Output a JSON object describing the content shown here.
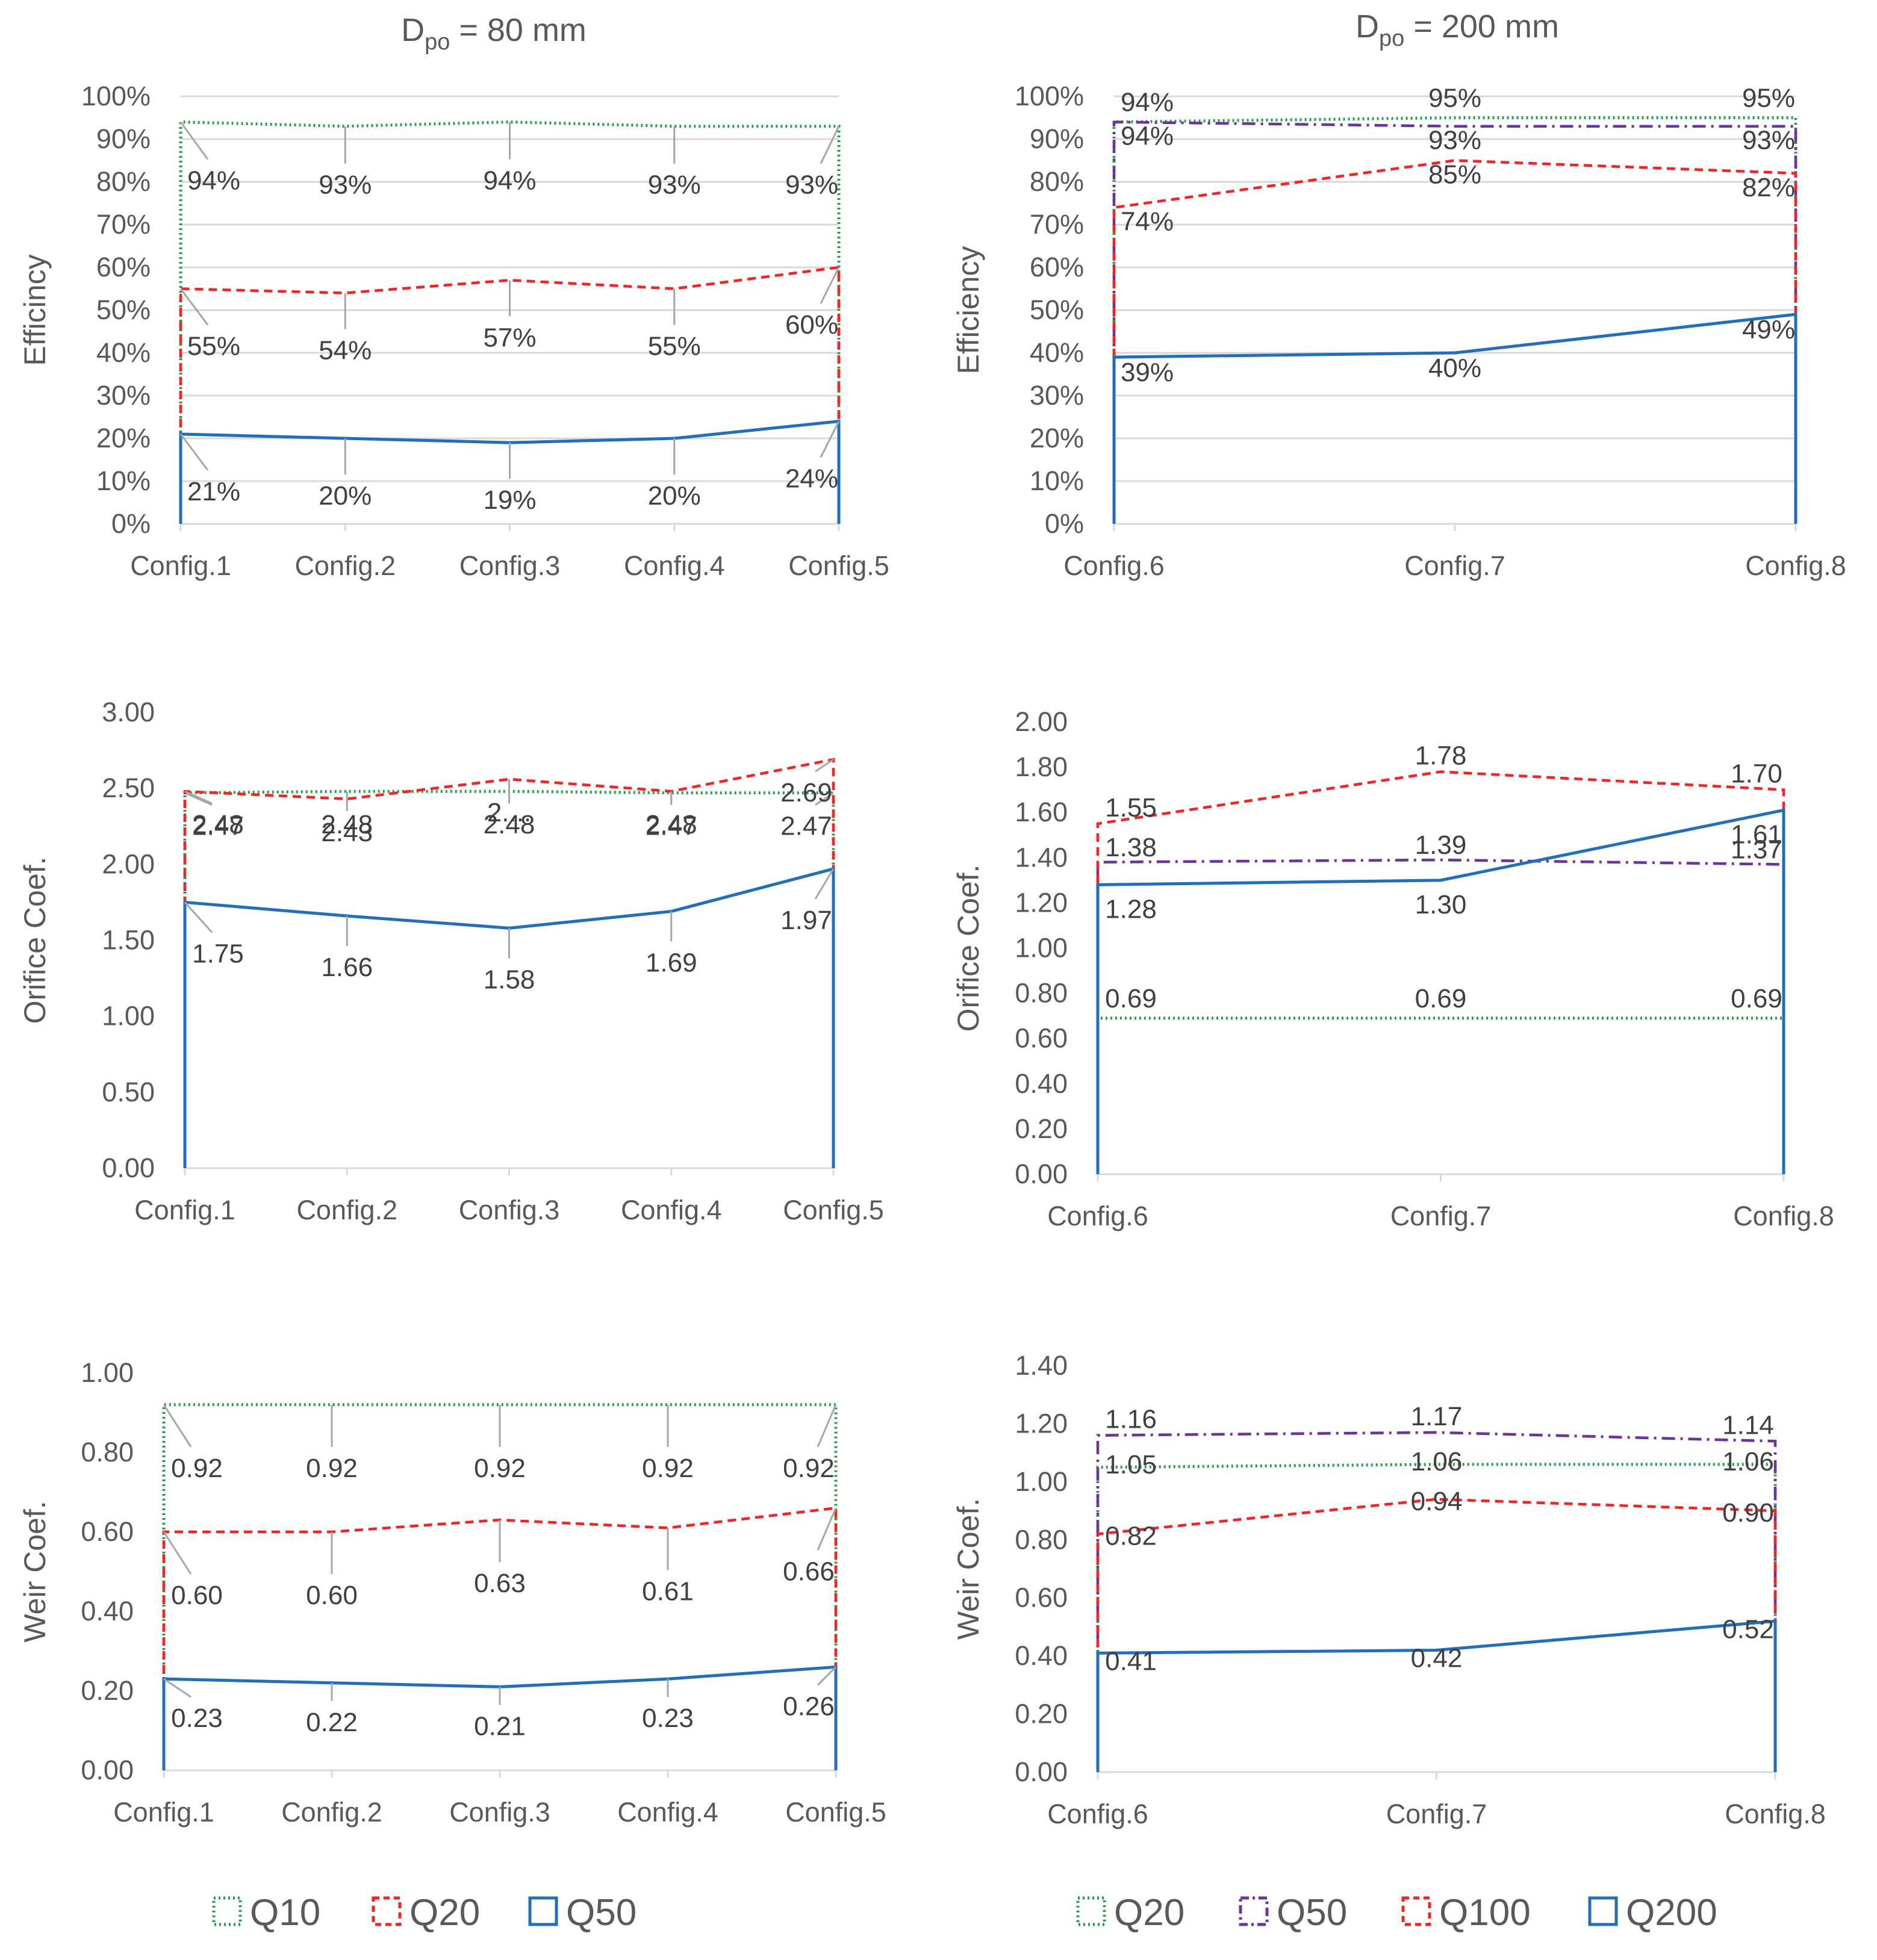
{
  "column_titles": [
    {
      "main": "D",
      "sub": "po",
      "rest": " = 80 mm"
    },
    {
      "main": "D",
      "sub": "po",
      "rest": " = 200 mm"
    }
  ],
  "legends": [
    {
      "items": [
        {
          "name": "Q10",
          "color": "#1fa343",
          "dash": "dot"
        },
        {
          "name": "Q20",
          "color": "#ff1f1f",
          "dash": "dash"
        },
        {
          "name": "Q50",
          "color": "#1f6fbf",
          "dash": "solid"
        }
      ]
    },
    {
      "items": [
        {
          "name": "Q20",
          "color": "#1fa343",
          "dash": "dot"
        },
        {
          "name": "Q50",
          "color": "#7030a0",
          "dash": "dashdot"
        },
        {
          "name": "Q100",
          "color": "#ff1f1f",
          "dash": "dash"
        },
        {
          "name": "Q200",
          "color": "#1f6fbf",
          "dash": "solid"
        }
      ]
    }
  ],
  "chart_data": [
    {
      "type": "line",
      "title": "",
      "ylabel": "Efficincy",
      "xlabel": "",
      "categories": [
        "Config.1",
        "Config.2",
        "Config.3",
        "Config.4",
        "Config.5"
      ],
      "ylim": [
        0,
        1
      ],
      "yticks": [
        "0%",
        "10%",
        "20%",
        "30%",
        "40%",
        "50%",
        "60%",
        "70%",
        "80%",
        "90%",
        "100%"
      ],
      "grid": true,
      "series": [
        {
          "name": "Q10",
          "values": [
            0.94,
            0.93,
            0.94,
            0.93,
            0.93
          ],
          "labels": [
            "94%",
            "93%",
            "94%",
            "93%",
            "93%"
          ]
        },
        {
          "name": "Q20",
          "values": [
            0.55,
            0.54,
            0.57,
            0.55,
            0.6
          ],
          "labels": [
            "55%",
            "54%",
            "57%",
            "55%",
            "60%"
          ]
        },
        {
          "name": "Q50",
          "values": [
            0.21,
            0.2,
            0.19,
            0.2,
            0.24
          ],
          "labels": [
            "21%",
            "20%",
            "19%",
            "20%",
            "24%"
          ]
        }
      ]
    },
    {
      "type": "line",
      "title": "",
      "ylabel": "Efficiency",
      "xlabel": "",
      "categories": [
        "Config.6",
        "Config.7",
        "Config.8"
      ],
      "ylim": [
        0,
        1
      ],
      "yticks": [
        "0%",
        "10%",
        "20%",
        "30%",
        "40%",
        "50%",
        "60%",
        "70%",
        "80%",
        "90%",
        "100%"
      ],
      "grid": true,
      "series": [
        {
          "name": "Q20",
          "values": [
            0.94,
            0.95,
            0.95
          ],
          "labels": [
            "94%",
            "95%",
            "95%"
          ]
        },
        {
          "name": "Q50",
          "values": [
            0.94,
            0.93,
            0.93
          ],
          "labels": [
            "94%",
            "93%",
            "93%"
          ]
        },
        {
          "name": "Q100",
          "values": [
            0.74,
            0.85,
            0.82
          ],
          "labels": [
            "74%",
            "85%",
            "82%"
          ]
        },
        {
          "name": "Q200",
          "values": [
            0.39,
            0.4,
            0.49
          ],
          "labels": [
            "39%",
            "40%",
            "49%"
          ]
        }
      ]
    },
    {
      "type": "line",
      "title": "",
      "ylabel": "Orifice Coef.",
      "xlabel": "",
      "categories": [
        "Config.1",
        "Config.2",
        "Config.3",
        "Config.4",
        "Config.5"
      ],
      "ylim": [
        0,
        3
      ],
      "yticks": [
        "0.00",
        "0.50",
        "1.00",
        "1.50",
        "2.00",
        "2.50",
        "3.00"
      ],
      "grid": false,
      "series": [
        {
          "name": "Q10",
          "values": [
            2.47,
            2.48,
            2.48,
            2.47,
            2.47
          ],
          "labels": [
            "2.47",
            "2.48",
            "2.48",
            "2.47",
            "2.47"
          ]
        },
        {
          "name": "Q20",
          "values": [
            2.48,
            2.43,
            2.56,
            2.48,
            2.69
          ],
          "labels": [
            "2.48",
            "2.43",
            "2....",
            "2.48",
            "2.69"
          ]
        },
        {
          "name": "Q50",
          "values": [
            1.75,
            1.66,
            1.58,
            1.69,
            1.97
          ],
          "labels": [
            "1.75",
            "1.66",
            "1.58",
            "1.69",
            "1.97"
          ]
        }
      ]
    },
    {
      "type": "line",
      "title": "",
      "ylabel": "Orifice Coef.",
      "xlabel": "",
      "categories": [
        "Config.6",
        "Config.7",
        "Config.8"
      ],
      "ylim": [
        0,
        2
      ],
      "yticks": [
        "0.00",
        "0.20",
        "0.40",
        "0.60",
        "0.80",
        "1.00",
        "1.20",
        "1.40",
        "1.60",
        "1.80",
        "2.00"
      ],
      "grid": false,
      "series": [
        {
          "name": "Q20",
          "values": [
            0.69,
            0.69,
            0.69
          ],
          "labels": [
            "0.69",
            "0.69",
            "0.69"
          ]
        },
        {
          "name": "Q50",
          "values": [
            1.38,
            1.39,
            1.37
          ],
          "labels": [
            "1.38",
            "1.39",
            "1.37"
          ]
        },
        {
          "name": "Q100",
          "values": [
            1.55,
            1.78,
            1.7
          ],
          "labels": [
            "1.55",
            "1.78",
            "1.70"
          ]
        },
        {
          "name": "Q200",
          "values": [
            1.28,
            1.3,
            1.61
          ],
          "labels": [
            "1.28",
            "1.30",
            "1.61"
          ]
        }
      ]
    },
    {
      "type": "line",
      "title": "",
      "ylabel": "Weir Coef.",
      "xlabel": "",
      "categories": [
        "Config.1",
        "Config.2",
        "Config.3",
        "Config.4",
        "Config.5"
      ],
      "ylim": [
        0,
        1
      ],
      "yticks": [
        "0.00",
        "0.20",
        "0.40",
        "0.60",
        "0.80",
        "1.00"
      ],
      "grid": false,
      "series": [
        {
          "name": "Q10",
          "values": [
            0.92,
            0.92,
            0.92,
            0.92,
            0.92
          ],
          "labels": [
            "0.92",
            "0.92",
            "0.92",
            "0.92",
            "0.92"
          ]
        },
        {
          "name": "Q20",
          "values": [
            0.6,
            0.6,
            0.63,
            0.61,
            0.66
          ],
          "labels": [
            "0.60",
            "0.60",
            "0.63",
            "0.61",
            "0.66"
          ]
        },
        {
          "name": "Q50",
          "values": [
            0.23,
            0.22,
            0.21,
            0.23,
            0.26
          ],
          "labels": [
            "0.23",
            "0.22",
            "0.21",
            "0.23",
            "0.26"
          ]
        }
      ]
    },
    {
      "type": "line",
      "title": "",
      "ylabel": "Weir Coef.",
      "xlabel": "",
      "categories": [
        "Config.6",
        "Config.7",
        "Config.8"
      ],
      "ylim": [
        0,
        1.4
      ],
      "yticks": [
        "0.00",
        "0.20",
        "0.40",
        "0.60",
        "0.80",
        "1.00",
        "1.20",
        "1.40"
      ],
      "grid": false,
      "series": [
        {
          "name": "Q20",
          "values": [
            1.05,
            1.06,
            1.06
          ],
          "labels": [
            "1.05",
            "1.06",
            "1.06"
          ]
        },
        {
          "name": "Q50",
          "values": [
            1.16,
            1.17,
            1.14
          ],
          "labels": [
            "1.16",
            "1.17",
            "1.14"
          ]
        },
        {
          "name": "Q100",
          "values": [
            0.82,
            0.94,
            0.9
          ],
          "labels": [
            "0.82",
            "0.94",
            "0.90"
          ]
        },
        {
          "name": "Q200",
          "values": [
            0.41,
            0.42,
            0.52
          ],
          "labels": [
            "0.41",
            "0.42",
            "0.52"
          ]
        }
      ]
    }
  ]
}
